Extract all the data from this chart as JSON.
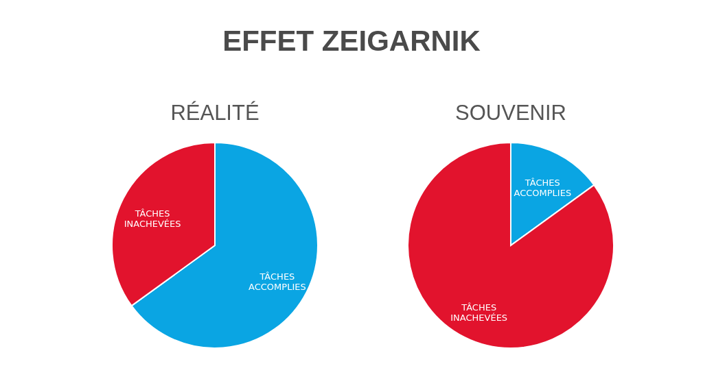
{
  "chart_data": [
    {
      "type": "pie",
      "title": "RÉALITÉ",
      "annotations": [
        "EFFET ZEIGARNIK"
      ],
      "categories": [
        "TÂCHES ACCOMPLIES",
        "TÂCHES INACHEVÉES"
      ],
      "values": [
        65,
        35
      ],
      "colors": [
        "#0aa5e3",
        "#e2132d"
      ],
      "legend": false
    },
    {
      "type": "pie",
      "title": "SOUVENIR",
      "categories": [
        "TÂCHES ACCOMPLIES",
        "TÂCHES INACHEVÉES"
      ],
      "values": [
        15,
        85
      ],
      "colors": [
        "#0aa5e3",
        "#e2132d"
      ],
      "legend": false
    }
  ]
}
